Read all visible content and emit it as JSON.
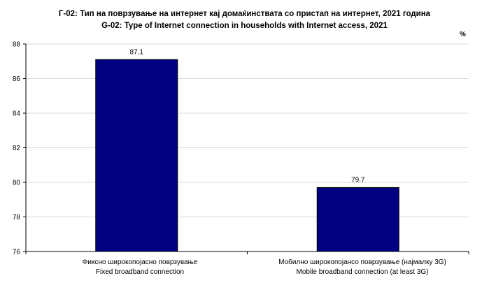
{
  "chart_data": {
    "type": "bar",
    "title": "Г-02: Тип на поврзување на интернет кај домаќинствата со пристап на интернет, 2021 година",
    "subtitle": "G-02: Type of Internet connection in households with Internet access, 2021",
    "unit": "%",
    "categories": [
      {
        "label_mk": "Фиксно широкопојасно поврзување",
        "label_en": "Fixed broadband connection"
      },
      {
        "label_mk": "Мобилно широкопојансо поврзување (најмалку 3G)",
        "label_en": "Mobile broadband connection (at least 3G)"
      }
    ],
    "values": [
      87.1,
      79.7
    ],
    "data_labels": [
      "87.1",
      "79.7"
    ],
    "ylim": [
      76,
      88
    ],
    "yticks": [
      76,
      78,
      80,
      82,
      84,
      86,
      88
    ],
    "grid": true,
    "legend": "none",
    "bar_color": "#000080",
    "grid_color": "#d9d9d9"
  }
}
